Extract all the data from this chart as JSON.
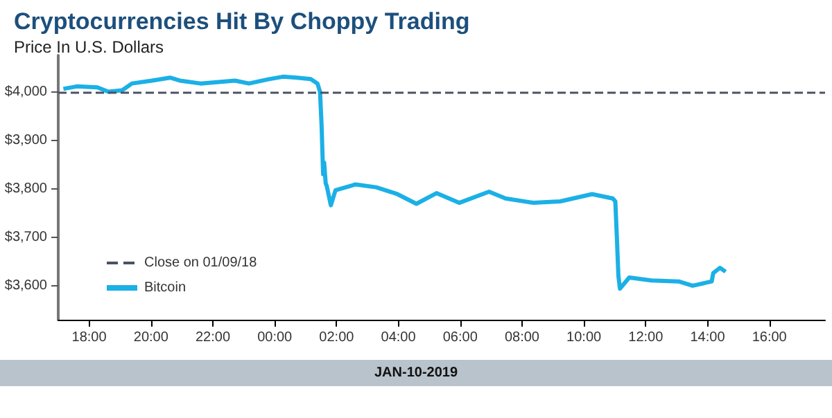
{
  "chart_data": {
    "type": "line",
    "title": "Cryptocurrencies Hit By Choppy Trading",
    "subtitle": "Price In U.S. Dollars",
    "xlabel": "JAN-10-2019",
    "xlim": [
      "2019-01-09T17:00",
      "2019-01-10T17:48"
    ],
    "xticks": [
      {
        "value": "2019-01-09T18:00",
        "label": "18:00"
      },
      {
        "value": "2019-01-09T20:00",
        "label": "20:00"
      },
      {
        "value": "2019-01-09T22:00",
        "label": "22:00"
      },
      {
        "value": "2019-01-10T00:00",
        "label": "00:00"
      },
      {
        "value": "2019-01-10T02:00",
        "label": "02:00"
      },
      {
        "value": "2019-01-10T04:00",
        "label": "04:00"
      },
      {
        "value": "2019-01-10T06:00",
        "label": "06:00"
      },
      {
        "value": "2019-01-10T08:00",
        "label": "08:00"
      },
      {
        "value": "2019-01-10T10:00",
        "label": "10:00"
      },
      {
        "value": "2019-01-10T12:00",
        "label": "12:00"
      },
      {
        "value": "2019-01-10T14:00",
        "label": "14:00"
      },
      {
        "value": "2019-01-10T16:00",
        "label": "16:00"
      }
    ],
    "ylim": [
      3530,
      4075
    ],
    "yticks": [
      {
        "value": 3600,
        "label": "$3,600"
      },
      {
        "value": 3700,
        "label": "$3,700"
      },
      {
        "value": 3800,
        "label": "$3,800"
      },
      {
        "value": 3900,
        "label": "$3,900"
      },
      {
        "value": 4000,
        "label": "$4,000"
      }
    ],
    "series": [
      {
        "name": "Bitcoin",
        "color": "#1bb0e6",
        "x": [
          "2019-01-09T17:10",
          "2019-01-09T17:36",
          "2019-01-09T18:16",
          "2019-01-09T18:37",
          "2019-01-09T19:04",
          "2019-01-09T19:23",
          "2019-01-09T20:02",
          "2019-01-09T20:37",
          "2019-01-09T20:56",
          "2019-01-09T21:36",
          "2019-01-09T22:43",
          "2019-01-09T23:10",
          "2019-01-09T23:49",
          "2019-01-10T00:16",
          "2019-01-10T00:43",
          "2019-01-10T01:10",
          "2019-01-10T01:23",
          "2019-01-10T01:28",
          "2019-01-10T01:31",
          "2019-01-10T01:34",
          "2019-01-10T01:36",
          "2019-01-10T01:39",
          "2019-01-10T01:41",
          "2019-01-10T01:49",
          "2019-01-10T01:58",
          "2019-01-10T02:37",
          "2019-01-10T03:17",
          "2019-01-10T03:58",
          "2019-01-10T04:35",
          "2019-01-10T05:14",
          "2019-01-10T05:58",
          "2019-01-10T06:56",
          "2019-01-10T07:28",
          "2019-01-10T08:22",
          "2019-01-10T09:14",
          "2019-01-10T10:16",
          "2019-01-10T10:56",
          "2019-01-10T11:01",
          "2019-01-10T11:04",
          "2019-01-10T11:07",
          "2019-01-10T11:10",
          "2019-01-10T11:28",
          "2019-01-10T12:11",
          "2019-01-10T13:04",
          "2019-01-10T13:31",
          "2019-01-10T14:08",
          "2019-01-10T14:11",
          "2019-01-10T14:24",
          "2019-01-10T14:35"
        ],
        "values": [
          4006,
          4011,
          4009,
          4000,
          4003,
          4017,
          4023,
          4029,
          4023,
          4017,
          4023,
          4017,
          4026,
          4031,
          4029,
          4026,
          4017,
          4000,
          3931,
          3830,
          3854,
          3811,
          3806,
          3766,
          3797,
          3809,
          3803,
          3789,
          3769,
          3791,
          3771,
          3794,
          3780,
          3771,
          3774,
          3789,
          3780,
          3774,
          3700,
          3620,
          3594,
          3617,
          3611,
          3609,
          3600,
          3609,
          3626,
          3637,
          3629
        ]
      }
    ],
    "ref_lines": [
      {
        "axis": "y",
        "value": 4000,
        "label": "Close on 01/09/18",
        "color": "#4a5263",
        "line_style": "dashed"
      }
    ],
    "legend": "bottom left",
    "grid": false,
    "marker": "none",
    "line_style": "solid"
  }
}
